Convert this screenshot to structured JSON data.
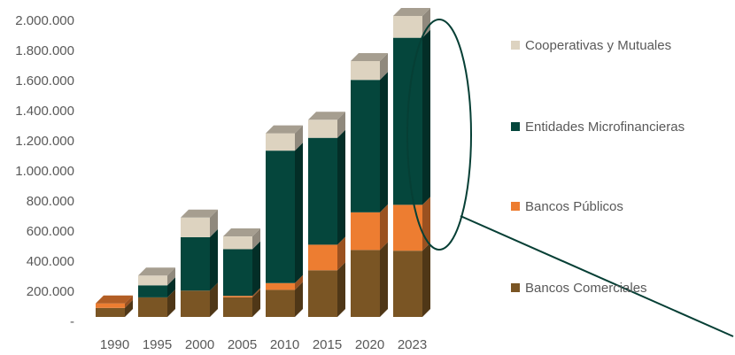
{
  "chart_data": {
    "type": "bar",
    "stacked": true,
    "style": "3d-stacked-column",
    "categories": [
      "1990",
      "1995",
      "2000",
      "2005",
      "2010",
      "2015",
      "2020",
      "2023"
    ],
    "series": [
      {
        "name": "Bancos Comerciales",
        "color": "#7a5524",
        "values": [
          60000,
          130000,
          175000,
          130000,
          180000,
          310000,
          445000,
          440000
        ]
      },
      {
        "name": "Bancos Públicos",
        "color": "#ed7d31",
        "values": [
          30000,
          0,
          0,
          10000,
          45000,
          170000,
          250000,
          305000
        ]
      },
      {
        "name": "Entidades Microfinancieras",
        "color": "#05463c",
        "values": [
          0,
          80000,
          355000,
          310000,
          880000,
          710000,
          880000,
          1110000
        ]
      },
      {
        "name": "Cooperativas y Mutuales",
        "color": "#ddd3c0",
        "values": [
          0,
          65000,
          130000,
          85000,
          115000,
          120000,
          125000,
          145000
        ]
      }
    ],
    "y_ticks": [
      "-",
      "200.000",
      "400.000",
      "600.000",
      "800.000",
      "1.000.000",
      "1.200.000",
      "1.400.000",
      "1.600.000",
      "1.800.000",
      "2.000.000"
    ],
    "ylim": [
      0,
      2000000
    ],
    "legend_position": "right",
    "legend_order": [
      "Cooperativas y Mutuales",
      "Entidades Microfinancieras",
      "Bancos Públicos",
      "Bancos Comerciales"
    ],
    "annotation": "ellipse highlighting 2023 column with pointer line",
    "grid": false
  }
}
